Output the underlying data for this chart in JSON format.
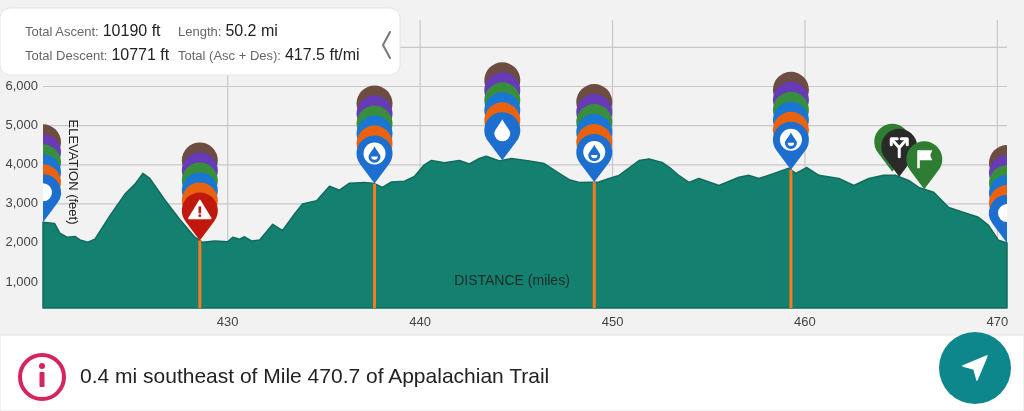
{
  "chart_data": {
    "type": "area",
    "xlabel": "DISTANCE (miles)",
    "ylabel": "ELEVATION (feet)",
    "x": [
      420.4,
      421.0,
      421.28,
      421.64,
      422.06,
      422.32,
      422.73,
      423.1,
      423.88,
      424.66,
      425.17,
      425.59,
      425.95,
      426.73,
      427.51,
      428.29,
      428.7,
      429.33,
      430.0,
      430.26,
      430.62,
      430.88,
      431.25,
      431.66,
      432.34,
      432.85,
      433.48,
      433.89,
      434.62,
      435.29,
      435.81,
      436.33,
      437.11,
      437.63,
      438.04,
      438.51,
      439.19,
      439.7,
      440.22,
      440.59,
      441.26,
      442.04,
      442.56,
      443.08,
      443.44,
      444.12,
      444.74,
      445.67,
      446.45,
      447.23,
      447.75,
      448.27,
      449.3,
      449.82,
      450.34,
      451.38,
      451.9,
      452.57,
      453.04,
      453.46,
      453.97,
      454.49,
      455.53,
      456.57,
      457.09,
      457.61,
      458.39,
      459.16,
      459.53,
      460.1,
      460.72,
      461.76,
      462.54,
      463.32,
      464.09,
      464.72,
      465.39,
      465.91,
      466.69,
      467.47,
      468.25,
      469.02,
      469.54,
      470.06,
      470.5
    ],
    "series": [
      {
        "color": "#14806f",
        "values": [
          2530,
          2500,
          2250,
          2150,
          2170,
          2080,
          2020,
          2100,
          2700,
          3250,
          3500,
          3780,
          3650,
          3100,
          2600,
          2150,
          2020,
          2050,
          2030,
          2150,
          2100,
          2160,
          2050,
          2080,
          2480,
          2320,
          2750,
          3000,
          3080,
          3450,
          3350,
          3530,
          3550,
          3520,
          3420,
          3560,
          3580,
          3700,
          4000,
          4110,
          4050,
          4110,
          4020,
          4160,
          4220,
          4100,
          4160,
          4100,
          4030,
          3780,
          3620,
          3550,
          3560,
          3650,
          3730,
          4110,
          4150,
          4060,
          3900,
          3720,
          3550,
          3650,
          3470,
          3680,
          3730,
          3650,
          3780,
          3910,
          3780,
          3930,
          3730,
          3650,
          3470,
          3650,
          3730,
          3730,
          3600,
          3420,
          3300,
          2910,
          2780,
          2660,
          2450,
          2070,
          2000
        ]
      }
    ],
    "xlim": [
      420.4,
      470.5
    ],
    "xticks": [
      430,
      440,
      450,
      460,
      470
    ],
    "ylim": [
      340,
      7700
    ],
    "yticks": [
      {
        "value": 1000,
        "label": "1,000"
      },
      {
        "value": 2000,
        "label": "2,000"
      },
      {
        "value": 3000,
        "label": "3,000"
      },
      {
        "value": 4000,
        "label": "4,000"
      },
      {
        "value": 5000,
        "label": "5,000"
      },
      {
        "value": 6000,
        "label": "6,000"
      },
      {
        "value": 7000,
        "label": null
      }
    ],
    "grid": true,
    "ref_lines": [
      {
        "axis": "x",
        "value": 428.55,
        "color": "#f57c1f"
      },
      {
        "axis": "x",
        "value": 437.63,
        "color": "#f57c1f"
      },
      {
        "axis": "x",
        "value": 449.05,
        "color": "#f57c1f"
      },
      {
        "axis": "x",
        "value": 459.27,
        "color": "#f57c1f"
      }
    ],
    "annotations": [
      "Total Ascent: 10190 ft",
      "Length: 50.2 mi",
      "Total Descent: 10771 ft",
      "Total (Asc + Des): 417.5 ft/mi",
      "0.4 mi southeast of Mile 470.7 of Appalachian Trail"
    ]
  }
}
